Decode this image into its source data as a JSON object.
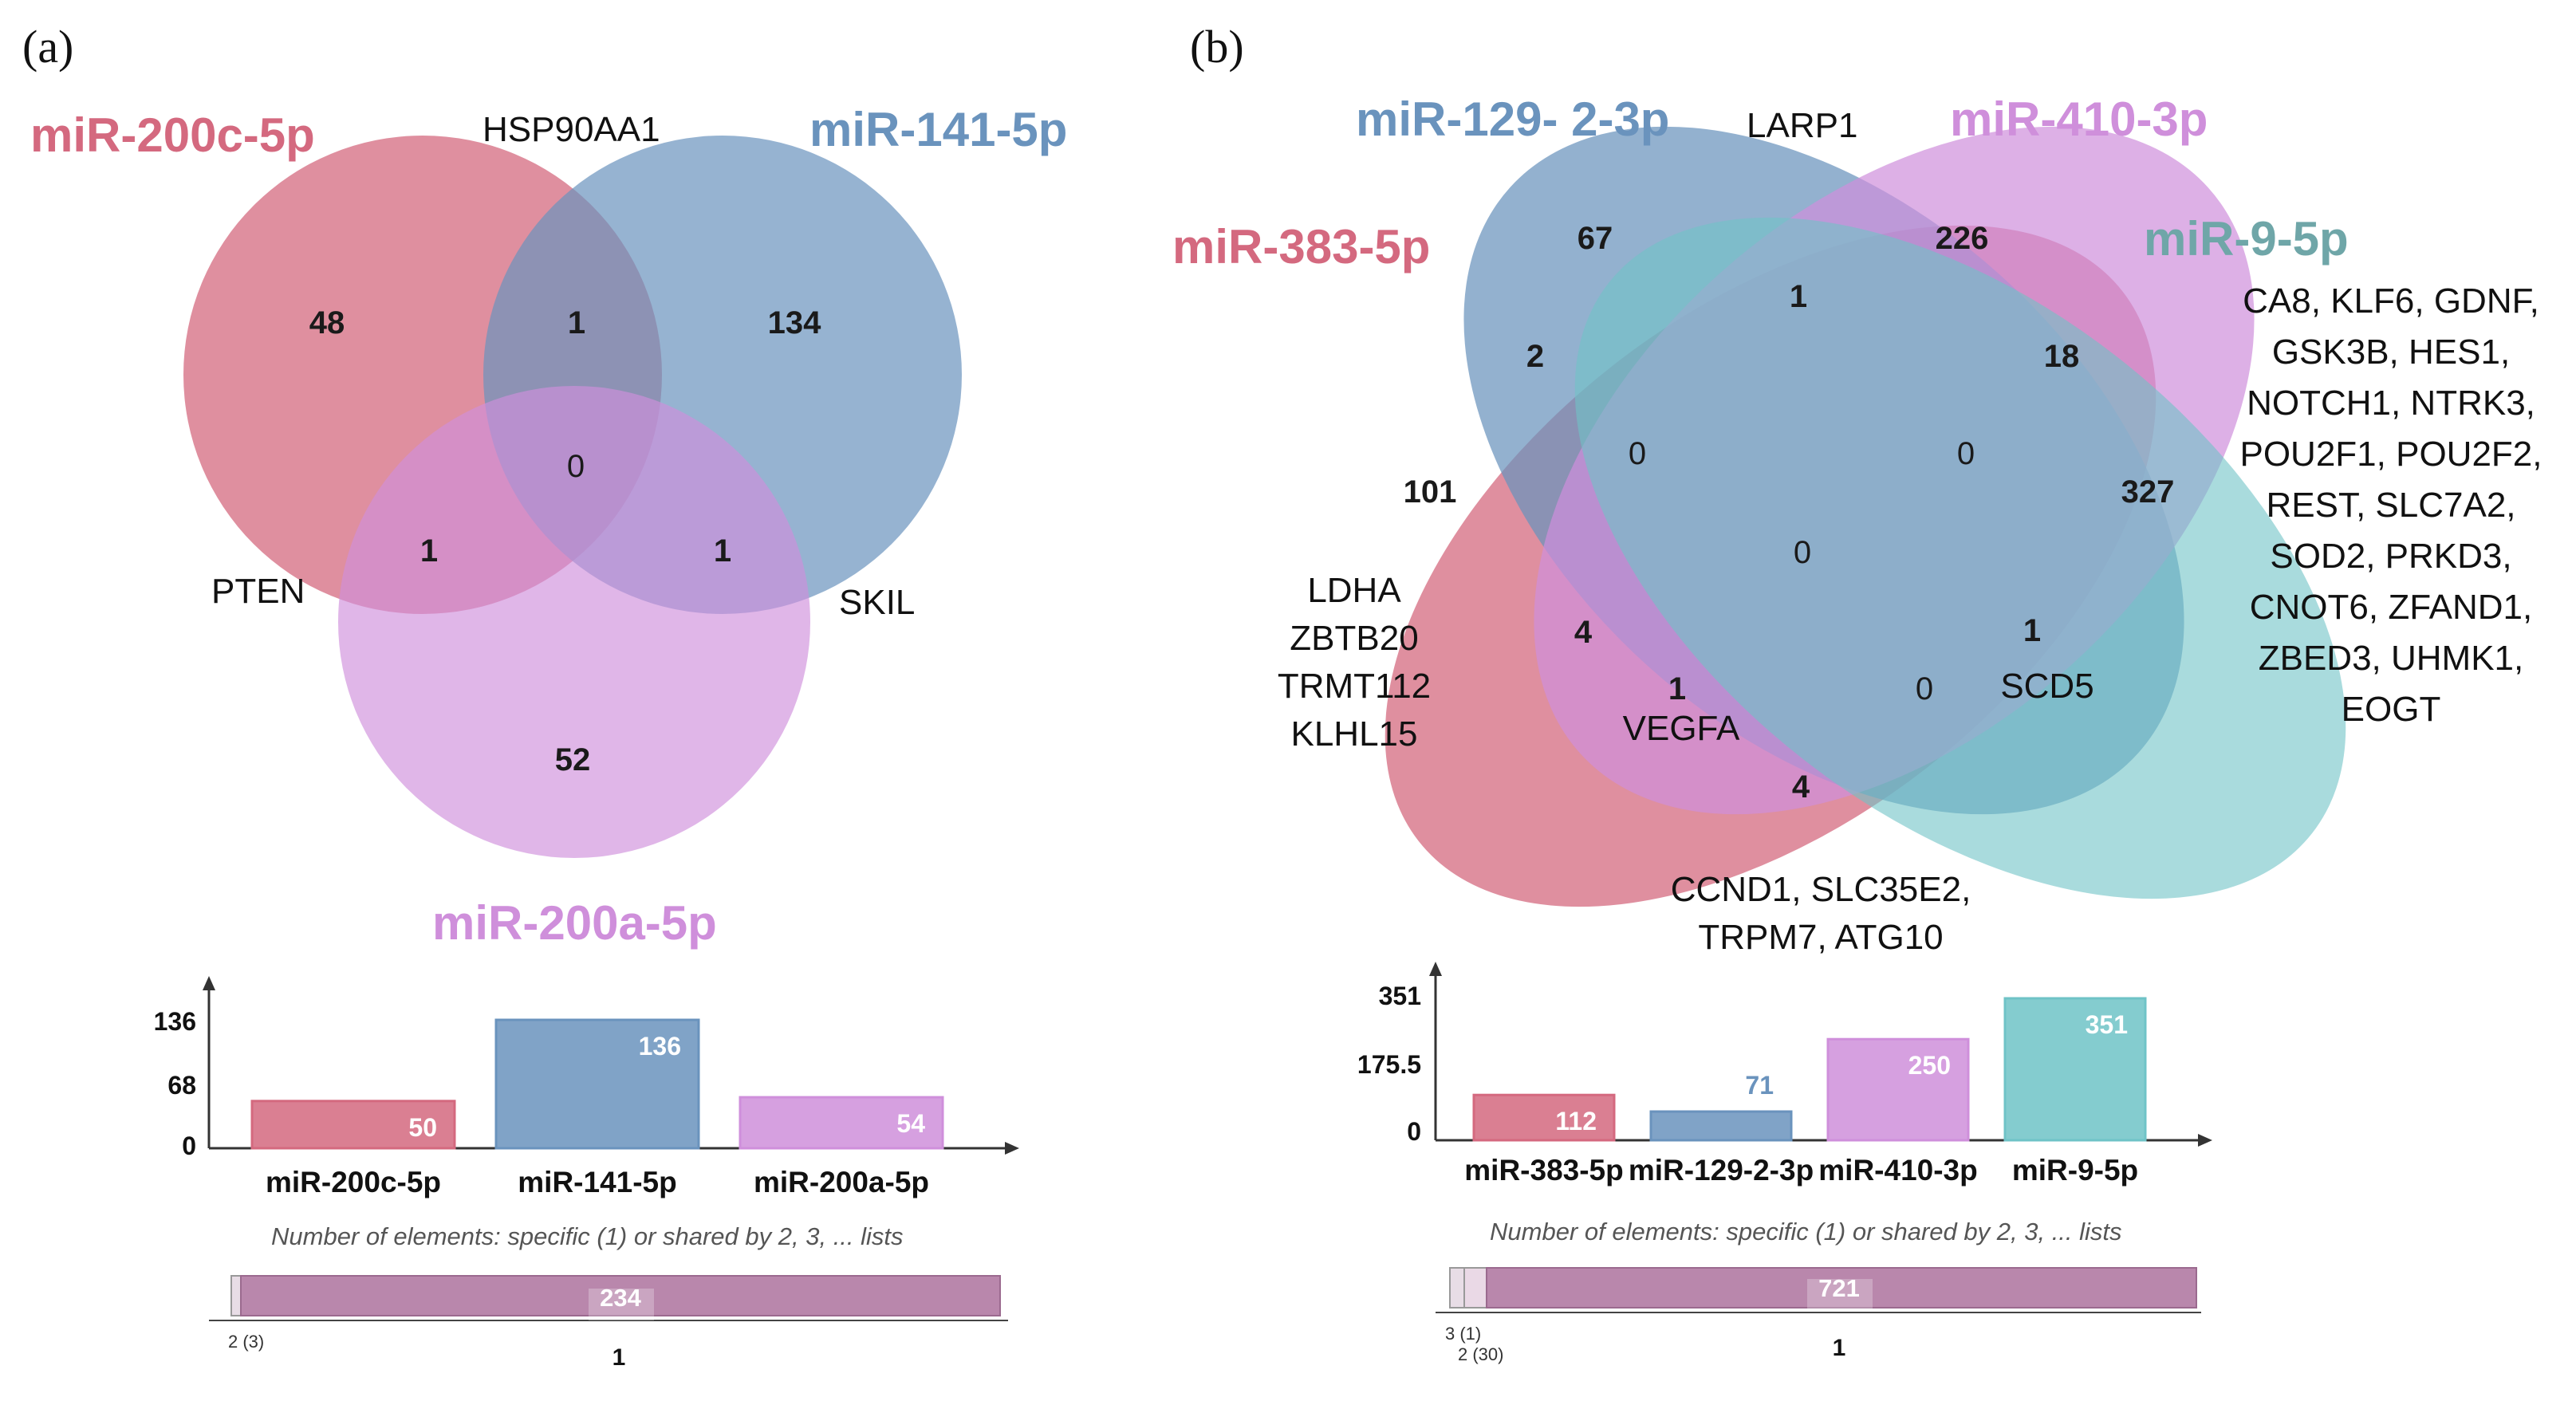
{
  "panel_a": {
    "label": "(a)",
    "sets": [
      {
        "name": "miR-200c-5p",
        "color": "#d4697f"
      },
      {
        "name": "miR-141-5p",
        "color": "#6a93bd"
      },
      {
        "name": "miR-200a-5p",
        "color": "#cf8fdb"
      }
    ],
    "regions": {
      "only_200c": "48",
      "only_141": "134",
      "only_200a": "52",
      "200c_141": "1",
      "200c_200a": "1",
      "141_200a": "1",
      "all": "0"
    },
    "genes": {
      "hsp": "HSP90AA1",
      "pten": "PTEN",
      "skil": "SKIL"
    },
    "bars": {
      "yticks": [
        "136",
        "68",
        "0"
      ],
      "ymax": 136,
      "items": [
        {
          "name": "miR-200c-5p",
          "value": 50,
          "label": "50",
          "color": "#d4697f"
        },
        {
          "name": "miR-141-5p",
          "value": 136,
          "label": "136",
          "color": "#6a93bd"
        },
        {
          "name": "miR-200a-5p",
          "value": 54,
          "label": "54",
          "color": "#cf8fdb"
        }
      ]
    },
    "caption": "Number of elements: specific (1) or shared by 2, 3, ... lists",
    "strip": {
      "total": "234",
      "left_label": "2 (3)",
      "center_label": "1"
    }
  },
  "panel_b": {
    "label": "(b)",
    "sets": [
      {
        "name": "miR-129- 2-3p",
        "color": "#6a93bd"
      },
      {
        "name": "miR-410-3p",
        "color": "#cf8fdb"
      },
      {
        "name": "miR-383-5p",
        "color": "#d4697f"
      },
      {
        "name": "miR-9-5p",
        "color": "#6fc3c7"
      }
    ],
    "regions": {
      "r67": "67",
      "r226": "226",
      "r1_top": "1",
      "r2": "2",
      "r18": "18",
      "r101": "101",
      "r0_left": "0",
      "r0_right": "0",
      "r327": "327",
      "r0_center": "0",
      "r4_left": "4",
      "r1_right": "1",
      "r1_lower": "1",
      "r0_lower": "0",
      "r4_bottom": "4"
    },
    "genes": {
      "larp1": "LARP1",
      "ldha_list": [
        "LDHA",
        "ZBTB20",
        "TRMT112",
        "KLHL15"
      ],
      "vegfa": "VEGFA",
      "scd5": "SCD5",
      "bottom_list": [
        "CCND1, SLC35E2,",
        "TRPM7, ATG10"
      ],
      "right_list": [
        "CA8, KLF6, GDNF,",
        "GSK3B, HES1,",
        "NOTCH1, NTRK3,",
        "POU2F1, POU2F2,",
        "REST, SLC7A2,",
        "SOD2, PRKD3,",
        "CNOT6, ZFAND1,",
        "ZBED3, UHMK1,",
        "EOGT"
      ]
    },
    "bars": {
      "yticks": [
        "351",
        "175.5",
        "0"
      ],
      "ymax": 351,
      "items": [
        {
          "name": "miR-383-5p",
          "value": 112,
          "label": "112",
          "color": "#d4697f"
        },
        {
          "name": "miR-129-2-3p",
          "value": 71,
          "label": "71",
          "color": "#6a93bd"
        },
        {
          "name": "miR-410-3p",
          "value": 250,
          "label": "250",
          "color": "#cf8fdb"
        },
        {
          "name": "miR-9-5p",
          "value": 351,
          "label": "351",
          "color": "#6fc3c7"
        }
      ]
    },
    "caption": "Number of elements: specific (1) or shared by 2, 3, ... lists",
    "strip": {
      "total": "721",
      "left_label_1": "3 (1)",
      "left_label_2": "2 (30)",
      "center_label": "1"
    }
  }
}
